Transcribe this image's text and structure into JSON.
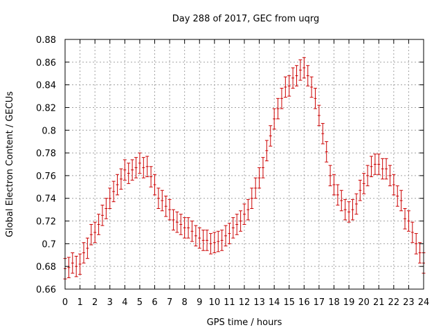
{
  "chart_data": {
    "type": "scatter",
    "title": "Day 288 of 2017, GEC from uqrg",
    "xlabel": "GPS time / hours",
    "ylabel": "Global Electron Content / GECUs",
    "xlim": [
      0,
      24
    ],
    "ylim": [
      0.66,
      0.88
    ],
    "x_ticks": [
      0,
      1,
      2,
      3,
      4,
      5,
      6,
      7,
      8,
      9,
      10,
      11,
      12,
      13,
      14,
      15,
      16,
      17,
      18,
      19,
      20,
      21,
      22,
      23,
      24
    ],
    "y_ticks": [
      0.66,
      0.68,
      0.7,
      0.72,
      0.74,
      0.76,
      0.78,
      0.8,
      0.82,
      0.84,
      0.86,
      0.88
    ],
    "y_tick_labels": [
      "0.66",
      "0.68",
      "0.7",
      "0.72",
      "0.74",
      "0.76",
      "0.78",
      "0.8",
      "0.82",
      "0.84",
      "0.86",
      "0.88"
    ],
    "grid": true,
    "error_bar_half_width": 0.009,
    "color": "#cc0000",
    "series": [
      {
        "x": [
          0,
          0.25,
          0.5,
          0.75,
          1,
          1.25,
          1.5,
          1.75,
          2,
          2.25,
          2.5,
          2.75,
          3,
          3.25,
          3.5,
          3.75,
          4,
          4.25,
          4.5,
          4.75,
          5,
          5.25,
          5.5,
          5.75,
          6,
          6.25,
          6.5,
          6.75,
          7,
          7.25,
          7.5,
          7.75,
          8,
          8.25,
          8.5,
          8.75,
          9,
          9.25,
          9.5,
          9.75,
          10,
          10.25,
          10.5,
          10.75,
          11,
          11.25,
          11.5,
          11.75,
          12,
          12.25,
          12.5,
          12.75,
          13,
          13.25,
          13.5,
          13.75,
          14,
          14.25,
          14.5,
          14.75,
          15,
          15.25,
          15.5,
          15.75,
          16,
          16.25,
          16.5,
          16.75,
          17,
          17.25,
          17.5,
          17.75,
          18,
          18.25,
          18.5,
          18.75,
          19,
          19.25,
          19.5,
          19.75,
          20,
          20.25,
          20.5,
          20.75,
          21,
          21.25,
          21.5,
          21.75,
          22,
          22.25,
          22.5,
          22.75,
          23,
          23.25,
          23.5,
          23.75,
          24
        ],
        "y": [
          0.678,
          0.679,
          0.683,
          0.68,
          0.682,
          0.692,
          0.696,
          0.708,
          0.71,
          0.717,
          0.725,
          0.731,
          0.74,
          0.746,
          0.752,
          0.757,
          0.765,
          0.762,
          0.765,
          0.767,
          0.771,
          0.767,
          0.768,
          0.759,
          0.752,
          0.74,
          0.738,
          0.733,
          0.73,
          0.721,
          0.719,
          0.717,
          0.714,
          0.714,
          0.711,
          0.707,
          0.705,
          0.703,
          0.703,
          0.7,
          0.701,
          0.702,
          0.703,
          0.707,
          0.709,
          0.714,
          0.717,
          0.72,
          0.726,
          0.73,
          0.74,
          0.749,
          0.758,
          0.767,
          0.782,
          0.795,
          0.81,
          0.819,
          0.828,
          0.838,
          0.839,
          0.846,
          0.848,
          0.853,
          0.855,
          0.848,
          0.838,
          0.828,
          0.813,
          0.797,
          0.781,
          0.76,
          0.752,
          0.743,
          0.738,
          0.73,
          0.728,
          0.73,
          0.735,
          0.747,
          0.753,
          0.76,
          0.768,
          0.77,
          0.77,
          0.766,
          0.766,
          0.76,
          0.752,
          0.742,
          0.738,
          0.722,
          0.72,
          0.71,
          0.7,
          0.692,
          0.683
        ]
      }
    ]
  }
}
